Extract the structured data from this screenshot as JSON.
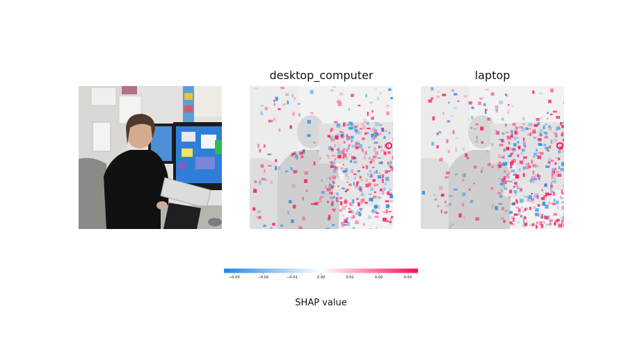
{
  "chart_data": {
    "type": "heatmap",
    "panels": [
      {
        "title": "",
        "kind": "original-photo"
      },
      {
        "title": "desktop_computer",
        "kind": "shap-overlay"
      },
      {
        "title": "laptop",
        "kind": "shap-overlay"
      }
    ],
    "colorbar": {
      "label": "SHAP value",
      "range": [
        -0.0335,
        0.0335
      ],
      "ticks": [
        -0.03,
        -0.02,
        -0.01,
        0.0,
        0.01,
        0.02,
        0.03
      ],
      "tick_labels": [
        "−0.03",
        "−0.02",
        "−0.01",
        "0.00",
        "0.01",
        "0.02",
        "0.03"
      ],
      "negative_color": "#1e88e5",
      "neutral_color": "#ffffff",
      "positive_color": "#ff0d57"
    }
  }
}
